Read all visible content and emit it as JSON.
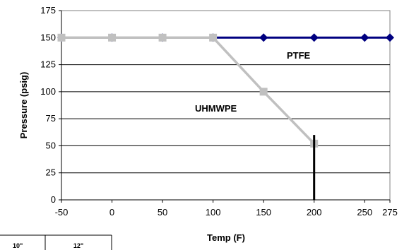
{
  "chart_data": {
    "type": "line",
    "title": "",
    "xlabel": "Temp (F)",
    "ylabel": "Pressure (psig)",
    "xlim": [
      -50,
      275
    ],
    "ylim": [
      0,
      175
    ],
    "x_ticks": [
      "-50",
      "0",
      "50",
      "100",
      "150",
      "200",
      "250",
      "275"
    ],
    "y_ticks": [
      "0",
      "25",
      "50",
      "75",
      "100",
      "125",
      "150",
      "175"
    ],
    "grid": "horizontal",
    "legend": "none",
    "series": [
      {
        "name": "PTFE",
        "color": "#000080",
        "marker": "diamond",
        "points": [
          [
            -50,
            150
          ],
          [
            0,
            150
          ],
          [
            50,
            150
          ],
          [
            100,
            150
          ],
          [
            150,
            150
          ],
          [
            200,
            150
          ],
          [
            250,
            150
          ],
          [
            275,
            150
          ]
        ]
      },
      {
        "name": "UHMWPE",
        "color": "#c0c0c0",
        "marker": "square",
        "points": [
          [
            -50,
            150
          ],
          [
            0,
            150
          ],
          [
            50,
            150
          ],
          [
            100,
            150
          ],
          [
            150,
            100
          ],
          [
            200,
            52
          ]
        ]
      }
    ],
    "annotations": [
      {
        "type": "vertical-line",
        "x": 200,
        "y_from": 0,
        "y_to": 60,
        "color": "#000000"
      }
    ]
  },
  "table_fragment": {
    "headers": [
      "10\"",
      "12\""
    ]
  }
}
